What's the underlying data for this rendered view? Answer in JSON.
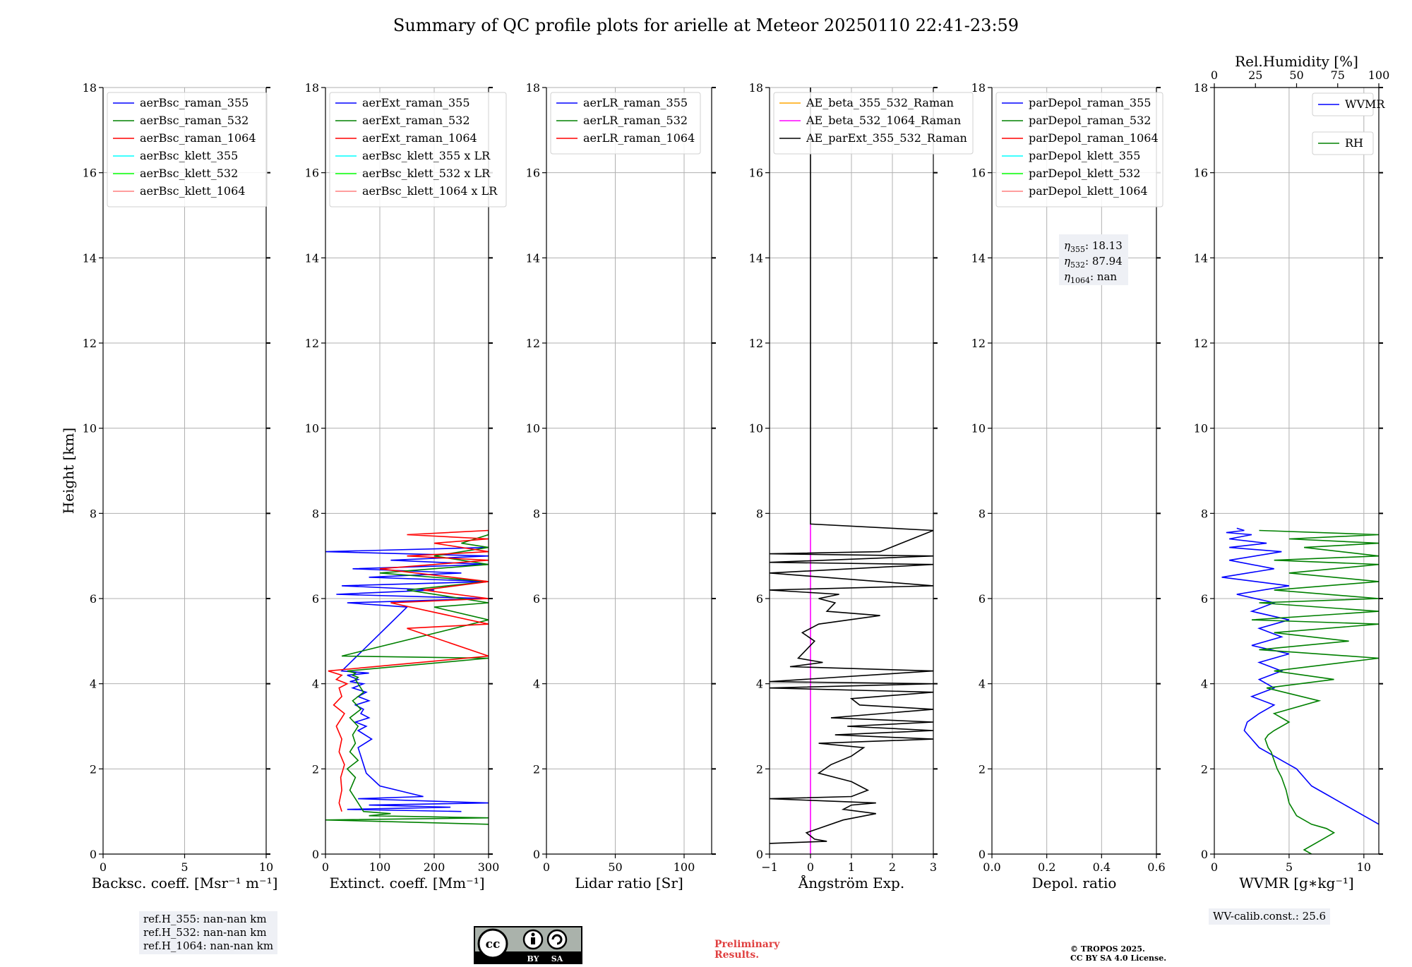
{
  "title": "Summary of QC profile plots for arielle at Meteor 20250110 22:41-23:59",
  "chart_data": [
    {
      "type": "line",
      "xlabel": "Backsc. coeff. [Msr⁻¹ m⁻¹]",
      "ylabel": "Height [km]",
      "xlim": [
        0,
        10
      ],
      "xticks": [
        "0",
        "5",
        "10"
      ],
      "ylim": [
        0,
        18
      ],
      "yticks": [
        "0",
        "2",
        "4",
        "6",
        "8",
        "10",
        "12",
        "14",
        "16",
        "18"
      ],
      "grid": true,
      "legend": {
        "placement": "top-left",
        "entries": [
          {
            "name": "aerBsc_raman_355",
            "color": "#0000ff"
          },
          {
            "name": "aerBsc_raman_532",
            "color": "#008000"
          },
          {
            "name": "aerBsc_raman_1064",
            "color": "#ff0000"
          },
          {
            "name": "aerBsc_klett_355",
            "color": "#00ffff"
          },
          {
            "name": "aerBsc_klett_532",
            "color": "#00ff00"
          },
          {
            "name": "aerBsc_klett_1064",
            "color": "#ff7f7f"
          }
        ]
      },
      "series": [],
      "note": "ref.H_355: nan-nan km\nref.H_532: nan-nan km\nref.H_1064: nan-nan km"
    },
    {
      "type": "line",
      "xlabel": "Extinct. coeff. [Mm⁻¹]",
      "xlim": [
        0,
        300
      ],
      "xticks": [
        "0",
        "100",
        "200",
        "300"
      ],
      "ylim": [
        0,
        18
      ],
      "yticks": [
        "0",
        "2",
        "4",
        "6",
        "8",
        "10",
        "12",
        "14",
        "16",
        "18"
      ],
      "grid": true,
      "legend": {
        "placement": "top-left",
        "entries": [
          {
            "name": "aerExt_raman_355",
            "color": "#0000ff"
          },
          {
            "name": "aerExt_raman_532",
            "color": "#008000"
          },
          {
            "name": "aerExt_raman_1064",
            "color": "#ff0000"
          },
          {
            "name": "aerBsc_klett_355 x LR",
            "color": "#00ffff"
          },
          {
            "name": "aerBsc_klett_532 x LR",
            "color": "#00ff00"
          },
          {
            "name": "aerBsc_klett_1064 x LR",
            "color": "#ff7f7f"
          }
        ]
      },
      "series": [
        {
          "name": "aerExt_raman_355",
          "color": "#0000ff",
          "x": [
            250,
            40,
            230,
            80,
            300,
            60,
            180,
            100,
            75,
            70,
            65,
            60,
            85,
            60,
            75,
            55,
            80,
            65,
            70,
            55,
            80,
            60,
            75,
            50,
            70,
            45,
            60,
            40,
            80,
            30,
            150,
            40,
            300,
            20,
            200,
            30,
            300,
            80,
            250,
            50,
            300,
            120,
            300,
            0,
            300
          ],
          "y": [
            1.0,
            1.05,
            1.1,
            1.15,
            1.2,
            1.3,
            1.35,
            1.6,
            1.9,
            2.1,
            2.3,
            2.5,
            2.7,
            2.9,
            3.0,
            3.1,
            3.2,
            3.3,
            3.4,
            3.5,
            3.6,
            3.7,
            3.8,
            3.9,
            4.0,
            4.05,
            4.1,
            4.2,
            4.25,
            4.3,
            5.8,
            5.9,
            6.0,
            6.1,
            6.2,
            6.3,
            6.4,
            6.5,
            6.6,
            6.7,
            6.8,
            6.9,
            7.0,
            7.1,
            7.2
          ]
        },
        {
          "name": "aerExt_raman_532",
          "color": "#008000",
          "x": [
            300,
            0,
            300,
            80,
            120,
            70,
            60,
            45,
            55,
            40,
            60,
            45,
            55,
            50,
            60,
            45,
            65,
            50,
            70,
            60,
            55,
            60,
            50,
            55,
            40,
            300,
            30,
            300,
            200,
            300,
            150,
            300,
            100,
            300,
            200,
            300,
            250,
            300,
            300
          ],
          "y": [
            0.7,
            0.8,
            0.85,
            0.9,
            0.95,
            1.0,
            1.2,
            1.5,
            1.8,
            2.0,
            2.2,
            2.4,
            2.6,
            2.8,
            3.0,
            3.2,
            3.4,
            3.6,
            3.8,
            4.0,
            4.1,
            4.15,
            4.2,
            4.25,
            4.3,
            4.6,
            4.65,
            5.5,
            5.8,
            5.9,
            6.2,
            6.4,
            6.6,
            6.8,
            7.0,
            7.2,
            7.3,
            7.5,
            7.6
          ]
        },
        {
          "name": "aerExt_raman_1064",
          "color": "#ff0000",
          "x": [
            30,
            25,
            30,
            28,
            35,
            25,
            30,
            20,
            35,
            15,
            30,
            25,
            40,
            20,
            30,
            5,
            300,
            150,
            300,
            120,
            300,
            180,
            300,
            100,
            300,
            150,
            300,
            200,
            300,
            150,
            300
          ],
          "y": [
            1.0,
            1.2,
            1.5,
            1.8,
            2.1,
            2.4,
            2.7,
            3.0,
            3.3,
            3.5,
            3.7,
            3.9,
            4.0,
            4.1,
            4.2,
            4.3,
            4.65,
            5.3,
            5.4,
            5.9,
            6.0,
            6.2,
            6.4,
            6.7,
            6.9,
            7.0,
            7.1,
            7.3,
            7.4,
            7.5,
            7.6
          ]
        }
      ]
    },
    {
      "type": "line",
      "xlabel": "Lidar ratio [Sr]",
      "xlim": [
        0,
        120
      ],
      "xticks": [
        "0",
        "50",
        "100"
      ],
      "ylim": [
        0,
        18
      ],
      "yticks": [
        "0",
        "2",
        "4",
        "6",
        "8",
        "10",
        "12",
        "14",
        "16",
        "18"
      ],
      "grid": true,
      "legend": {
        "placement": "top-left",
        "entries": [
          {
            "name": "aerLR_raman_355",
            "color": "#0000ff"
          },
          {
            "name": "aerLR_raman_532",
            "color": "#008000"
          },
          {
            "name": "aerLR_raman_1064",
            "color": "#ff0000"
          }
        ]
      },
      "series": []
    },
    {
      "type": "line",
      "xlabel": "Ångström Exp.",
      "xlim": [
        -1,
        3
      ],
      "xticks": [
        "−1",
        "0",
        "1",
        "2",
        "3"
      ],
      "ylim": [
        0,
        18
      ],
      "yticks": [
        "0",
        "2",
        "4",
        "6",
        "8",
        "10",
        "12",
        "14",
        "16",
        "18"
      ],
      "grid": true,
      "legend": {
        "placement": "top-left",
        "entries": [
          {
            "name": "AE_beta_355_532_Raman",
            "color": "#ffa500"
          },
          {
            "name": "AE_beta_532_1064_Raman",
            "color": "#ff00ff"
          },
          {
            "name": "AE_parExt_355_532_Raman",
            "color": "#000000"
          }
        ]
      },
      "series": [
        {
          "name": "AE_beta_532_1064_Raman",
          "color": "#ff00ff",
          "x": [
            0,
            0
          ],
          "y": [
            0,
            7.75
          ]
        },
        {
          "name": "AE_parExt_355_532_Raman",
          "color": "#000000",
          "x": [
            -1,
            0.4,
            0.1,
            -0.1,
            0.2,
            0.8,
            1.6,
            0.8,
            1.0,
            1.6,
            -1,
            1.0,
            1.4,
            1.0,
            0.2,
            0.5,
            1.0,
            1.3,
            0.2,
            3,
            0.6,
            3,
            0.9,
            3,
            0.5,
            3,
            1.2,
            1.0,
            3,
            -1,
            3,
            -1,
            3,
            -0.5,
            0.3,
            -0.3,
            -0.1,
            0.1,
            -0.2,
            0.2,
            1.7,
            0.4,
            0.6,
            0.2,
            0.7,
            -1,
            3,
            -1,
            3,
            -1,
            3,
            -1,
            1.7,
            3,
            0,
            0,
            0
          ],
          "y": [
            0.25,
            0.3,
            0.35,
            0.5,
            0.6,
            0.8,
            0.95,
            1.05,
            1.15,
            1.2,
            1.3,
            1.35,
            1.5,
            1.7,
            1.9,
            2.1,
            2.3,
            2.5,
            2.6,
            2.7,
            2.8,
            2.9,
            3.0,
            3.1,
            3.2,
            3.4,
            3.5,
            3.65,
            3.8,
            3.9,
            4.0,
            4.05,
            4.3,
            4.4,
            4.5,
            4.6,
            4.8,
            5.0,
            5.2,
            5.4,
            5.6,
            5.7,
            5.9,
            6.0,
            6.1,
            6.2,
            6.3,
            6.6,
            6.8,
            6.85,
            7.0,
            7.05,
            7.1,
            7.6,
            7.75,
            16.5,
            18
          ]
        }
      ]
    },
    {
      "type": "line",
      "xlabel": "Depol. ratio",
      "xlim": [
        0,
        0.6
      ],
      "xticks": [
        "0.0",
        "0.2",
        "0.4",
        "0.6"
      ],
      "ylim": [
        0,
        18
      ],
      "yticks": [
        "0",
        "2",
        "4",
        "6",
        "8",
        "10",
        "12",
        "14",
        "16",
        "18"
      ],
      "grid": true,
      "legend": {
        "placement": "top-left",
        "entries": [
          {
            "name": "parDepol_raman_355",
            "color": "#0000ff"
          },
          {
            "name": "parDepol_raman_532",
            "color": "#008000"
          },
          {
            "name": "parDepol_raman_1064",
            "color": "#ff0000"
          },
          {
            "name": "parDepol_klett_355",
            "color": "#00ffff"
          },
          {
            "name": "parDepol_klett_532",
            "color": "#00ff00"
          },
          {
            "name": "parDepol_klett_1064",
            "color": "#ff7f7f"
          }
        ]
      },
      "series": [],
      "annotation": [
        {
          "sym": "η",
          "sub": "355",
          "val": ": 18.13"
        },
        {
          "sym": "η",
          "sub": "532",
          "val": ": 87.94"
        },
        {
          "sym": "η",
          "sub": "1064",
          "val": ": nan"
        }
      ]
    },
    {
      "type": "line",
      "xlabel": "WVMR [g∗kg⁻¹]",
      "xlim": [
        0,
        11
      ],
      "xticks": [
        "0",
        "5",
        "10"
      ],
      "x2label": "Rel.Humidity [%]",
      "x2lim": [
        0,
        100
      ],
      "x2ticks": [
        "0",
        "25",
        "50",
        "75",
        "100"
      ],
      "ylim": [
        0,
        18
      ],
      "yticks": [
        "0",
        "2",
        "4",
        "6",
        "8",
        "10",
        "12",
        "14",
        "16",
        "18"
      ],
      "grid": true,
      "legend": {
        "placement": "top-right",
        "entries": [
          {
            "name": "WVMR",
            "color": "#0000ff"
          },
          {
            "name": "RH",
            "color": "#008000"
          }
        ]
      },
      "series": [
        {
          "name": "WVMR",
          "color": "#0000ff",
          "x": [
            11,
            10.5,
            10,
            9.5,
            9,
            8.5,
            8,
            7.5,
            7,
            6.5,
            6,
            5.5,
            5,
            4.5,
            4,
            3.5,
            3,
            2.5,
            2,
            2.2,
            3,
            4,
            2.5,
            4,
            3,
            4.5,
            3,
            5,
            2.5,
            4.5,
            3,
            5,
            2.5,
            4,
            1.5,
            5,
            0.5,
            4,
            1,
            4.5,
            1,
            3.5,
            1,
            2.5,
            0.8,
            2,
            1.5
          ],
          "y": [
            0.7,
            0.8,
            0.9,
            1.0,
            1.1,
            1.2,
            1.3,
            1.4,
            1.5,
            1.6,
            1.8,
            2.0,
            2.1,
            2.2,
            2.3,
            2.4,
            2.5,
            2.7,
            2.9,
            3.1,
            3.3,
            3.5,
            3.7,
            3.9,
            4.1,
            4.3,
            4.5,
            4.7,
            4.9,
            5.1,
            5.3,
            5.5,
            5.7,
            5.9,
            6.1,
            6.3,
            6.5,
            6.7,
            6.9,
            7.1,
            7.2,
            7.3,
            7.4,
            7.5,
            7.55,
            7.6,
            7.65
          ]
        },
        {
          "name": "RH",
          "color": "#008000",
          "x": [
            6.5,
            6,
            7,
            8,
            7.5,
            6.5,
            5.5,
            5,
            4.8,
            4.5,
            4.2,
            4,
            3.8,
            3.6,
            3.5,
            3.4,
            3.6,
            4,
            5,
            4,
            7,
            3.5,
            8,
            4,
            11,
            3,
            9,
            4,
            11,
            2.5,
            11,
            3,
            11,
            4,
            11,
            5,
            11,
            4,
            11,
            6,
            11,
            5,
            11,
            3
          ],
          "y": [
            0,
            0.1,
            0.3,
            0.5,
            0.6,
            0.7,
            0.9,
            1.2,
            1.5,
            1.8,
            2.0,
            2.2,
            2.4,
            2.5,
            2.6,
            2.7,
            2.8,
            2.9,
            3.1,
            3.3,
            3.6,
            3.9,
            4.1,
            4.3,
            4.6,
            4.8,
            5.0,
            5.2,
            5.4,
            5.5,
            5.7,
            5.9,
            6.0,
            6.2,
            6.4,
            6.6,
            6.8,
            6.9,
            7.0,
            7.2,
            7.3,
            7.4,
            7.5,
            7.6
          ]
        }
      ],
      "note": "WV-calib.const.: 25.6"
    }
  ],
  "footer": {
    "cc_main": "cc",
    "cc_by": "BY",
    "cc_sa": "SA",
    "preliminary_line1": "Preliminary",
    "preliminary_line2": "Results.",
    "tropos_line1": "© TROPOS 2025.",
    "tropos_line2": "CC BY SA 4.0 License."
  }
}
